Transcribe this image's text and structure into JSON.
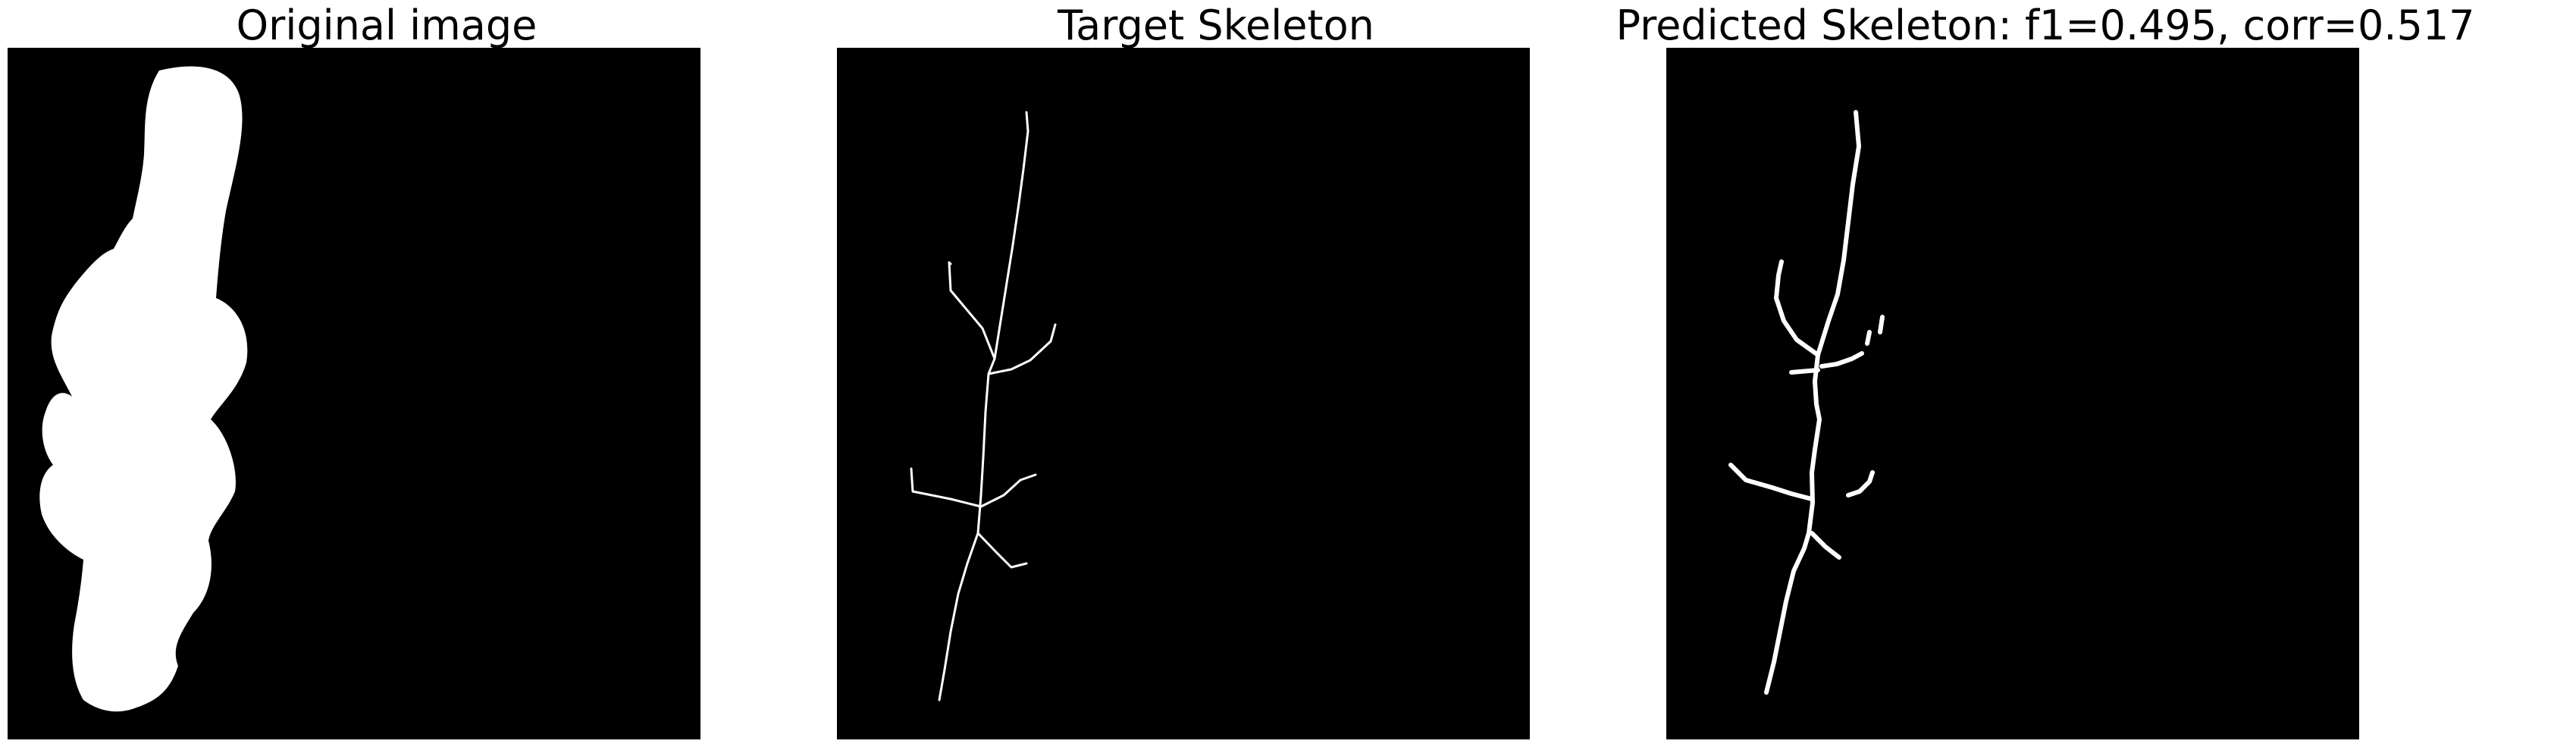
{
  "figure": {
    "background_color": "#ffffff",
    "panels": [
      {
        "title": "Original image",
        "image": "binary shape mask: white elongated blob on black"
      },
      {
        "title": "Target Skeleton",
        "image": "thin white branching skeleton on black"
      },
      {
        "title": "Predicted Skeleton: f1=0.495, corr=0.517",
        "image": "thicker white branching skeleton on black"
      }
    ],
    "colors": {
      "foreground": "#ffffff",
      "background": "#000000"
    }
  }
}
